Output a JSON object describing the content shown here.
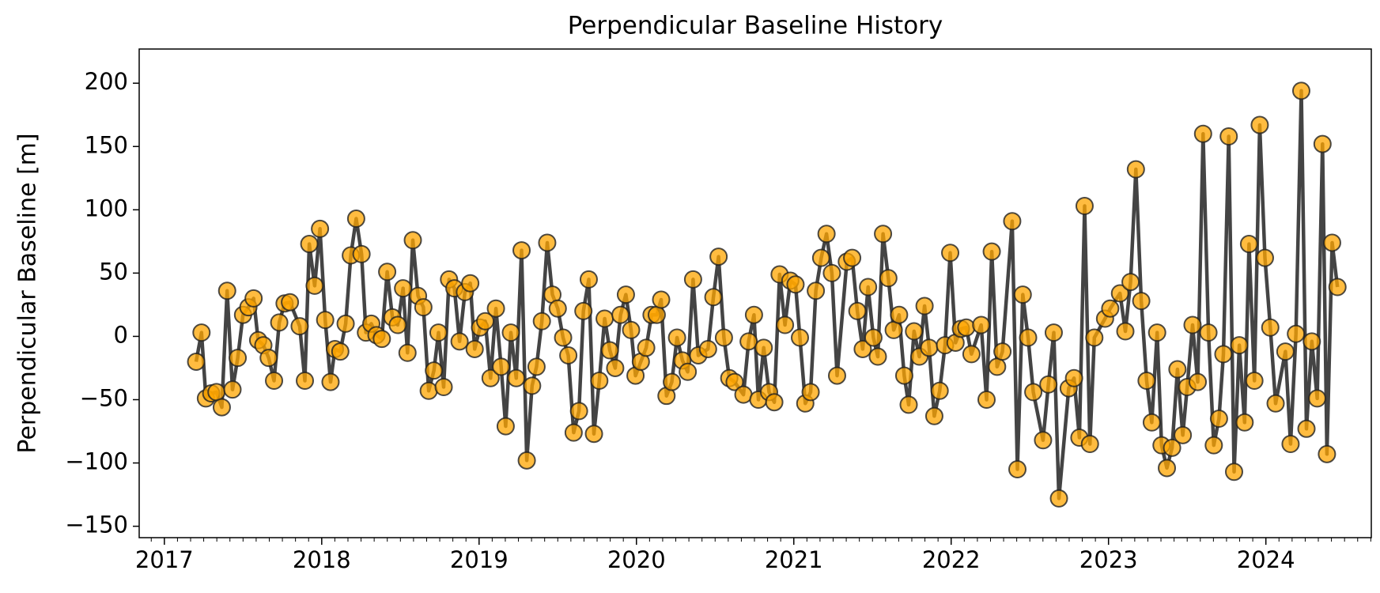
{
  "chart_data": {
    "type": "line",
    "title": "Perpendicular Baseline History",
    "ylabel": "Perpendicular Baseline [m]",
    "color": "#444444",
    "marker_color": "#ffa500",
    "xlim": [
      2016.84,
      2024.67
    ],
    "xticks": [
      2017,
      2018,
      2019,
      2020,
      2021,
      2022,
      2023,
      2024
    ],
    "ylim": [
      -159,
      227
    ],
    "yticks": [
      {
        "value": -150,
        "label": "−150"
      },
      {
        "value": -100,
        "label": "−100"
      },
      {
        "value": -50,
        "label": "−50"
      },
      0,
      50,
      100,
      150,
      200
    ],
    "x": [
      2017.202,
      2017.236,
      2017.264,
      2017.298,
      2017.331,
      2017.365,
      2017.399,
      2017.433,
      2017.466,
      2017.5,
      2017.534,
      2017.567,
      2017.596,
      2017.629,
      2017.663,
      2017.697,
      2017.73,
      2017.764,
      2017.798,
      2017.86,
      2017.893,
      2017.921,
      2017.955,
      2017.989,
      2018.022,
      2018.056,
      2018.084,
      2018.118,
      2018.152,
      2018.185,
      2018.219,
      2018.253,
      2018.281,
      2018.315,
      2018.348,
      2018.382,
      2018.416,
      2018.449,
      2018.483,
      2018.517,
      2018.545,
      2018.579,
      2018.612,
      2018.646,
      2018.68,
      2018.713,
      2018.742,
      2018.775,
      2018.809,
      2018.843,
      2018.876,
      2018.91,
      2018.944,
      2018.972,
      2019.006,
      2019.039,
      2019.073,
      2019.107,
      2019.14,
      2019.169,
      2019.202,
      2019.236,
      2019.27,
      2019.303,
      2019.337,
      2019.365,
      2019.399,
      2019.433,
      2019.466,
      2019.5,
      2019.534,
      2019.567,
      2019.601,
      2019.635,
      2019.663,
      2019.697,
      2019.73,
      2019.764,
      2019.798,
      2019.831,
      2019.865,
      2019.899,
      2019.933,
      2019.966,
      2019.994,
      2020.028,
      2020.062,
      2020.096,
      2020.129,
      2020.157,
      2020.191,
      2020.225,
      2020.258,
      2020.292,
      2020.326,
      2020.36,
      2020.393,
      2020.455,
      2020.489,
      2020.522,
      2020.556,
      2020.59,
      2020.624,
      2020.68,
      2020.713,
      2020.747,
      2020.775,
      2020.809,
      2020.843,
      2020.876,
      2020.91,
      2020.944,
      2020.978,
      2021.011,
      2021.039,
      2021.073,
      2021.107,
      2021.14,
      2021.174,
      2021.208,
      2021.242,
      2021.275,
      2021.337,
      2021.371,
      2021.404,
      2021.438,
      2021.472,
      2021.506,
      2021.534,
      2021.567,
      2021.601,
      2021.635,
      2021.669,
      2021.702,
      2021.73,
      2021.764,
      2021.798,
      2021.831,
      2021.86,
      2021.893,
      2021.927,
      2021.961,
      2021.994,
      2022.028,
      2022.062,
      2022.096,
      2022.129,
      2022.191,
      2022.225,
      2022.258,
      2022.292,
      2022.326,
      2022.388,
      2022.421,
      2022.455,
      2022.489,
      2022.522,
      2022.584,
      2022.618,
      2022.652,
      2022.685,
      2022.747,
      2022.781,
      2022.815,
      2022.848,
      2022.882,
      2022.91,
      2022.978,
      2023.011,
      2023.073,
      2023.107,
      2023.14,
      2023.174,
      2023.208,
      2023.242,
      2023.275,
      2023.309,
      2023.337,
      2023.371,
      2023.404,
      2023.438,
      2023.472,
      2023.5,
      2023.534,
      2023.567,
      2023.601,
      2023.635,
      2023.669,
      2023.702,
      2023.73,
      2023.764,
      2023.798,
      2023.831,
      2023.865,
      2023.893,
      2023.927,
      2023.961,
      2023.994,
      2024.028,
      2024.062,
      2024.124,
      2024.157,
      2024.191,
      2024.225,
      2024.258,
      2024.292,
      2024.326,
      2024.36,
      2024.388,
      2024.421,
      2024.455
    ],
    "values": [
      -20,
      3,
      -49,
      -45,
      -44,
      -56,
      36,
      -42,
      -17,
      17,
      23,
      30,
      -3,
      -7,
      -17,
      -35,
      11,
      26,
      27,
      8,
      -35,
      73,
      40,
      85,
      13,
      -36,
      -10,
      -12,
      10,
      64,
      93,
      65,
      3,
      10,
      1,
      -2,
      51,
      15,
      9,
      38,
      -13,
      76,
      32,
      23,
      -43,
      -27,
      3,
      -40,
      45,
      38,
      -4,
      35,
      42,
      -10,
      7,
      12,
      -33,
      22,
      -24,
      -71,
      3,
      -33,
      68,
      -98,
      -39,
      -24,
      12,
      74,
      33,
      22,
      -1,
      -15,
      -76,
      -59,
      20,
      45,
      -77,
      -35,
      14,
      -11,
      -25,
      17,
      33,
      5,
      -31,
      -20,
      -9,
      17,
      17,
      29,
      -47,
      -36,
      -1,
      -19,
      -28,
      45,
      -15,
      -10,
      31,
      63,
      -1,
      -33,
      -36,
      -46,
      -4,
      17,
      -50,
      -9,
      -44,
      -52,
      49,
      9,
      44,
      41,
      -1,
      -53,
      -44,
      36,
      62,
      81,
      50,
      -31,
      59,
      62,
      20,
      -10,
      39,
      -1,
      -16,
      81,
      46,
      5,
      17,
      -31,
      -54,
      4,
      -16,
      24,
      -9,
      -63,
      -43,
      -7,
      66,
      -5,
      6,
      7,
      -14,
      9,
      -50,
      67,
      -24,
      -12,
      91,
      -105,
      33,
      -1,
      -44,
      -82,
      -38,
      3,
      -128,
      -41,
      -33,
      -80,
      103,
      -85,
      -1,
      14,
      22,
      34,
      4,
      43,
      132,
      28,
      -35,
      -68,
      3,
      -86,
      -104,
      -88,
      -26,
      -78,
      -40,
      9,
      -36,
      160,
      3,
      -86,
      -65,
      -14,
      158,
      -107,
      -7,
      -68,
      73,
      -35,
      167,
      62,
      7,
      -53,
      -12,
      -85,
      2,
      194,
      -73,
      -4,
      -49,
      152,
      -93,
      74,
      39
    ]
  }
}
